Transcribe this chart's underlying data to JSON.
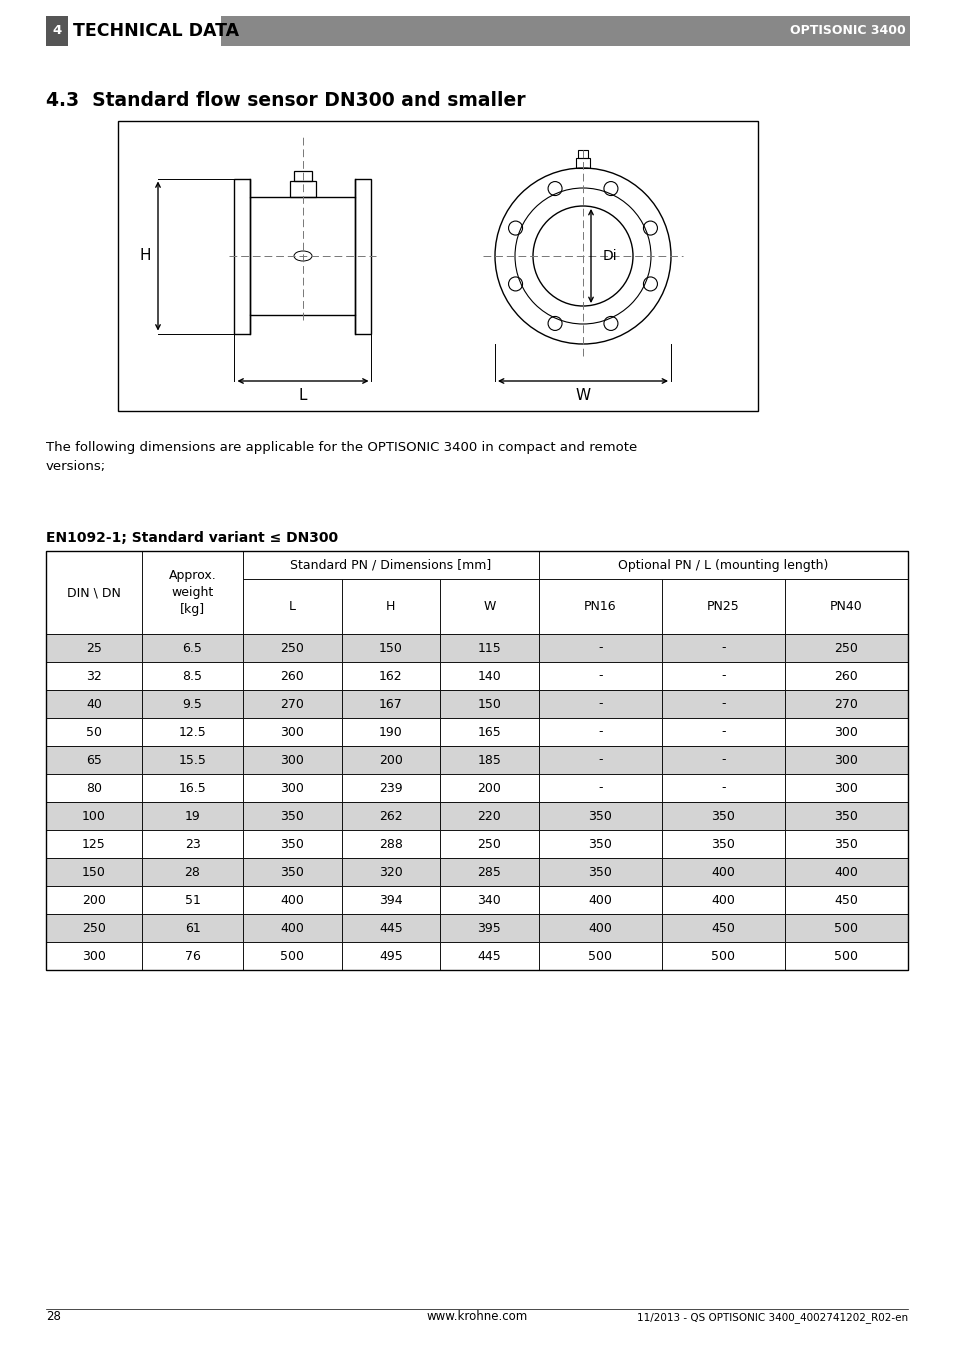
{
  "page_number": "28",
  "website": "www.krohne.com",
  "footer_right": "11/2013 - QS OPTISONIC 3400_4002741202_R02-en",
  "header_left_num": "4",
  "header_left_text": "TECHNICAL DATA",
  "header_right": "OPTISONIC 3400",
  "section_title": "4.3  Standard flow sensor DN300 and smaller",
  "description": "The following dimensions are applicable for the OPTISONIC 3400 in compact and remote\nversions;",
  "table_title": "EN1092-1; Standard variant ≤ DN300",
  "table_data": [
    [
      "25",
      "6.5",
      "250",
      "150",
      "115",
      "-",
      "-",
      "250"
    ],
    [
      "32",
      "8.5",
      "260",
      "162",
      "140",
      "-",
      "-",
      "260"
    ],
    [
      "40",
      "9.5",
      "270",
      "167",
      "150",
      "-",
      "-",
      "270"
    ],
    [
      "50",
      "12.5",
      "300",
      "190",
      "165",
      "-",
      "-",
      "300"
    ],
    [
      "65",
      "15.5",
      "300",
      "200",
      "185",
      "-",
      "-",
      "300"
    ],
    [
      "80",
      "16.5",
      "300",
      "239",
      "200",
      "-",
      "-",
      "300"
    ],
    [
      "100",
      "19",
      "350",
      "262",
      "220",
      "350",
      "350",
      "350"
    ],
    [
      "125",
      "23",
      "350",
      "288",
      "250",
      "350",
      "350",
      "350"
    ],
    [
      "150",
      "28",
      "350",
      "320",
      "285",
      "350",
      "400",
      "400"
    ],
    [
      "200",
      "51",
      "400",
      "394",
      "340",
      "400",
      "400",
      "450"
    ],
    [
      "250",
      "61",
      "400",
      "445",
      "395",
      "400",
      "450",
      "500"
    ],
    [
      "300",
      "76",
      "500",
      "495",
      "445",
      "500",
      "500",
      "500"
    ]
  ],
  "shaded_rows": [
    0,
    2,
    4,
    6,
    8,
    10
  ],
  "row_bg_shaded": "#d4d4d4",
  "row_bg_white": "#ffffff",
  "header_bar_color": "#888888",
  "num_box_color": "#555555"
}
